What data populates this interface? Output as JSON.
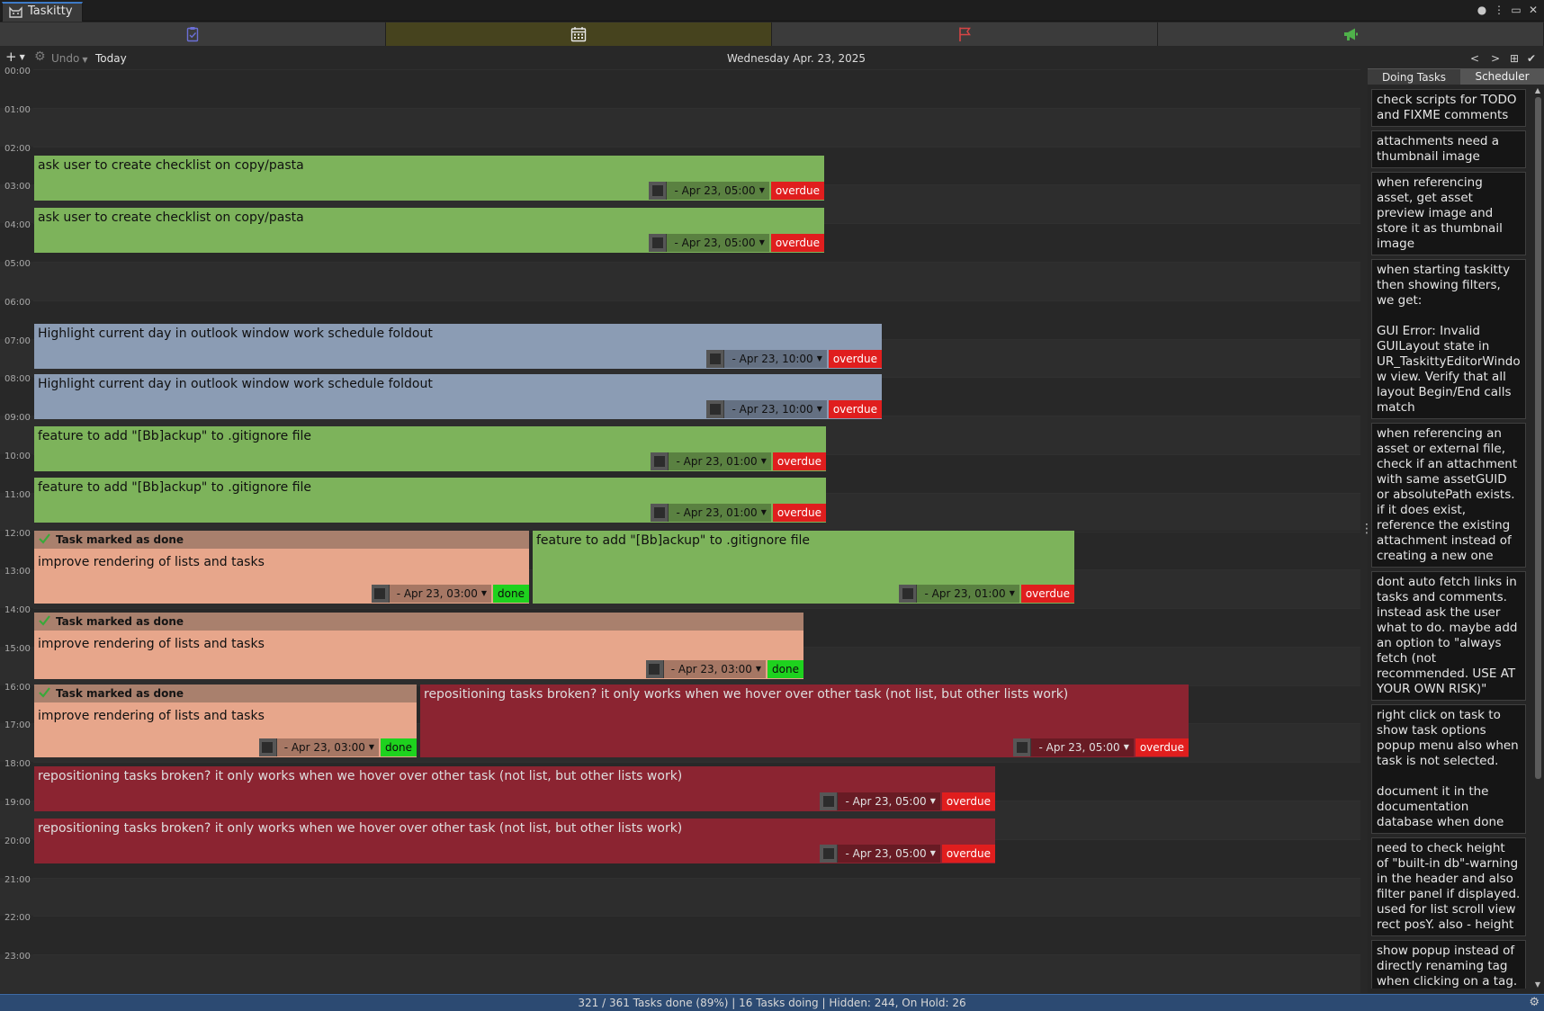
{
  "window": {
    "title": "Taskitty"
  },
  "toolbar": {
    "add_label": "+",
    "undo_label": "Undo",
    "today_label": "Today",
    "current_date": "Wednesday Apr. 23, 2025",
    "prev_label": "<",
    "next_label": ">"
  },
  "hours": [
    "00:00",
    "01:00",
    "02:00",
    "03:00",
    "04:00",
    "05:00",
    "06:00",
    "07:00",
    "08:00",
    "09:00",
    "10:00",
    "11:00",
    "12:00",
    "13:00",
    "14:00",
    "15:00",
    "16:00",
    "17:00",
    "18:00",
    "19:00",
    "20:00",
    "21:00",
    "22:00",
    "23:00"
  ],
  "tasks": [
    {
      "id": "t1",
      "title": "ask user to create checklist on copy/pasta",
      "due": "- Apr 23, 05:00",
      "status": "overdue"
    },
    {
      "id": "t2",
      "title": "ask user to create checklist on copy/pasta",
      "due": "- Apr 23, 05:00",
      "status": "overdue"
    },
    {
      "id": "t3",
      "title": "Highlight current day in outlook window work schedule foldout",
      "due": "- Apr 23, 10:00",
      "status": "overdue"
    },
    {
      "id": "t4",
      "title": "Highlight current day in outlook window work schedule foldout",
      "due": "- Apr 23, 10:00",
      "status": "overdue"
    },
    {
      "id": "t5",
      "title": "feature to add \"[Bb]ackup\" to .gitignore file",
      "due": "- Apr 23, 01:00",
      "status": "overdue"
    },
    {
      "id": "t6",
      "title": "feature to add \"[Bb]ackup\" to .gitignore file",
      "due": "- Apr 23, 01:00",
      "status": "overdue"
    },
    {
      "id": "t7",
      "header": "Task marked as done",
      "title": "improve rendering of lists and tasks",
      "due": "- Apr 23, 03:00",
      "status": "done"
    },
    {
      "id": "t8",
      "title": "feature to add \"[Bb]ackup\" to .gitignore file",
      "due": "- Apr 23, 01:00",
      "status": "overdue"
    },
    {
      "id": "t9",
      "header": "Task marked as done",
      "title": "improve rendering of lists and tasks",
      "due": "- Apr 23, 03:00",
      "status": "done"
    },
    {
      "id": "t10",
      "header": "Task marked as done",
      "title": "improve rendering of lists and tasks",
      "due": "- Apr 23, 03:00",
      "status": "done"
    },
    {
      "id": "t11",
      "title": "repositioning tasks broken? it only works when we hover over other task (not list, but other lists work)",
      "due": "- Apr 23, 05:00",
      "status": "overdue"
    },
    {
      "id": "t12",
      "title": "repositioning tasks broken? it only works when we hover over other task (not list, but other lists work)",
      "due": "- Apr 23, 05:00",
      "status": "overdue"
    },
    {
      "id": "t13",
      "title": "repositioning tasks broken? it only works when we hover over other task (not list, but other lists work)",
      "due": "- Apr 23, 05:00",
      "status": "overdue"
    }
  ],
  "panel": {
    "tabs": [
      "Doing Tasks",
      "Scheduler"
    ],
    "doing_tasks": [
      "check scripts for TODO and FIXME comments",
      "attachments need a thumbnail image",
      "when referencing asset, get asset preview image and store it as thumbnail image",
      "when starting taskitty then showing filters, we get:\n\nGUI Error: Invalid GUILayout state in UR_TaskittyEditorWindow view. Verify that all layout Begin/End calls match",
      "when referencing an asset or external file, check if an attachment with same assetGUID or absolutePath exists. if it does exist, reference the existing attachment instead of creating a new one",
      "dont auto fetch links in tasks and comments. instead ask the user what to do. maybe add an option to \"always fetch (not recommended. USE AT YOUR OWN RISK)\"",
      "right click on task to show task options popup menu also when task is not selected.\n\ndocument it in the documentation database when done",
      "need to check height of \"built-in db\"-warning in the header and also filter panel if displayed. used for list scroll view rect posY. also - height",
      "show popup instead of directly renaming tag when clicking on a tag. maybe keep instant rename with right mouse click?"
    ]
  },
  "status_bar": "321 / 361 Tasks done (89%) | 16 Tasks doing | Hidden: 244, On Hold: 26"
}
